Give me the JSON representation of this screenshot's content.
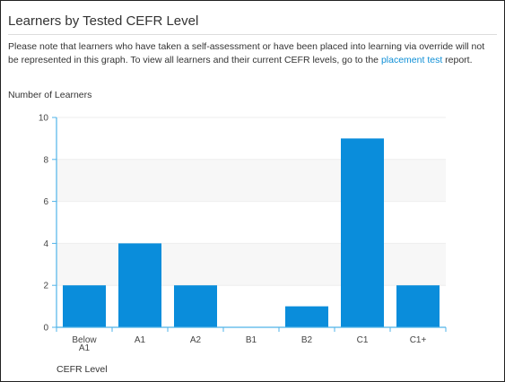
{
  "panel": {
    "title": "Learners by Tested CEFR Level",
    "note_before_link": "Please note that learners who have taken a self-assessment or have been placed into learning via override will not be represented in this graph. To view all learners and their current CEFR levels, go to the ",
    "note_link": "placement test",
    "note_after_link": " report."
  },
  "chart_data": {
    "type": "bar",
    "ylabel": "Number of Learners",
    "xlabel": "CEFR Level",
    "categories": [
      "Below A1",
      "A1",
      "A2",
      "B1",
      "B2",
      "C1",
      "C1+"
    ],
    "values": [
      2,
      4,
      2,
      0,
      1,
      9,
      2
    ],
    "ylim": [
      0,
      10
    ],
    "yticks": [
      0,
      2,
      4,
      6,
      8,
      10
    ],
    "grid": "alternating horizontal bands",
    "legend": "none",
    "bar_color": "#0a8ddb"
  },
  "colors": {
    "bar": "#0a8ddb",
    "link": "#0f8fd6",
    "axis": "#4fb3e8",
    "band": "#f7f7f7"
  }
}
